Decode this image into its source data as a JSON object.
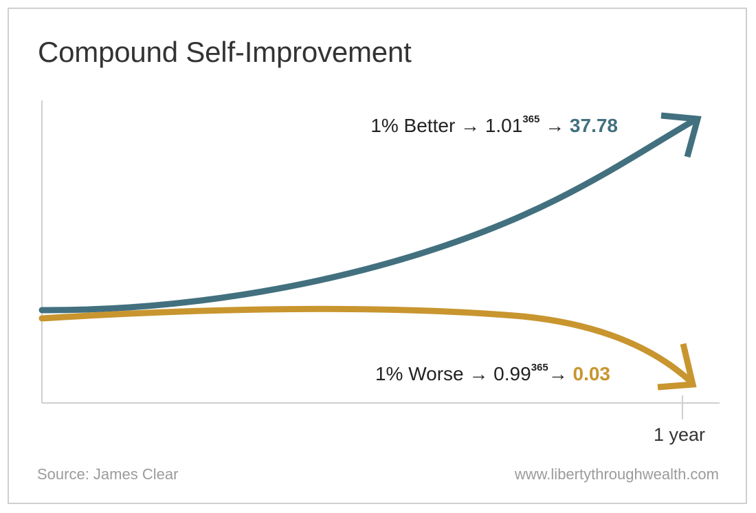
{
  "chart_data": {
    "type": "line",
    "title": "Compound Self-Improvement",
    "xlabel": "",
    "ylabel": "",
    "x_ticks": [
      "1 year"
    ],
    "x": [
      0,
      0.2,
      0.4,
      0.6,
      0.8,
      1.0
    ],
    "series": [
      {
        "name": "1% Better",
        "color": "#42707f",
        "label_prefix": "1% Better → 1.01",
        "exponent": "365",
        "label_arrow": " → ",
        "final_value": "37.78",
        "values": [
          1.0,
          2.07,
          4.3,
          8.89,
          18.4,
          37.78
        ]
      },
      {
        "name": "1% Worse",
        "color": "#c8952f",
        "label_prefix": "1% Worse → 0.99",
        "exponent": "365",
        "label_arrow": "→ ",
        "final_value": "0.03",
        "values": [
          1.0,
          0.48,
          0.23,
          0.11,
          0.05,
          0.03
        ]
      }
    ],
    "grid": false,
    "legend": "none"
  },
  "footer": {
    "source": "Source: James Clear",
    "website": "www.libertythroughwealth.com"
  },
  "colors": {
    "axis": "#cfcfcf",
    "frame": "#cfcfcf",
    "text": "#333333"
  }
}
